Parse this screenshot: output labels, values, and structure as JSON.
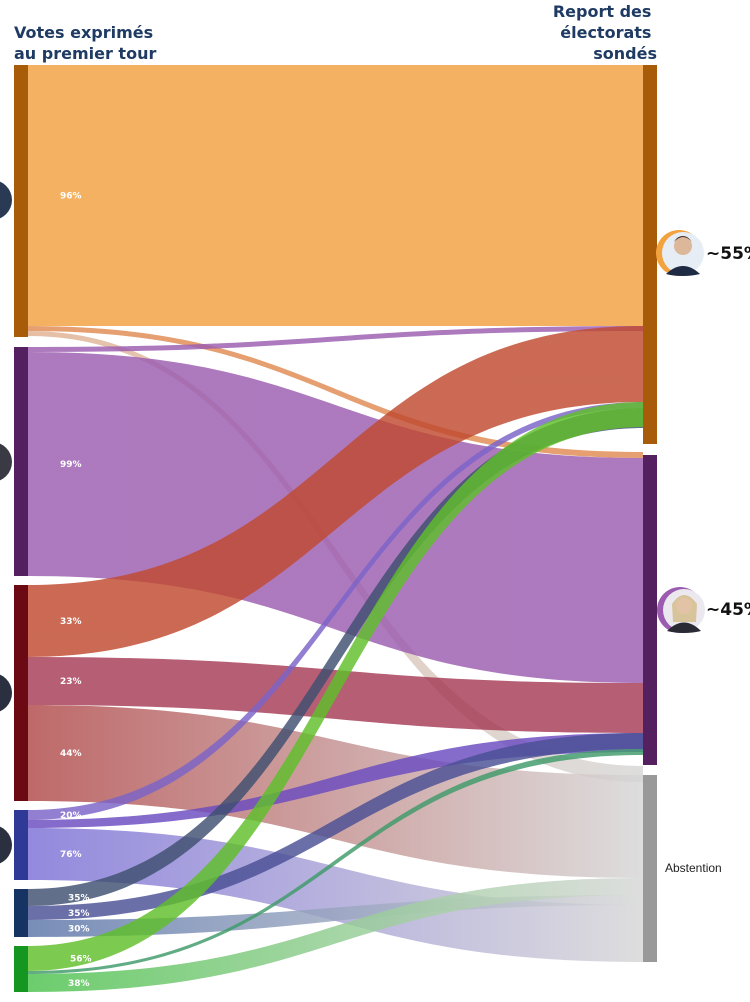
{
  "chart_data": {
    "type": "sankey",
    "title_left": [
      "Votes exprimés",
      "au premier tour"
    ],
    "title_right": [
      "Report des",
      "électorats",
      "sondés"
    ],
    "sources": [
      {
        "id": "s1",
        "color": "#a85b08"
      },
      {
        "id": "s2",
        "color": "#55205f"
      },
      {
        "id": "s3",
        "color": "#6b0a12"
      },
      {
        "id": "s4",
        "color": "#2f3996"
      },
      {
        "id": "s5",
        "color": "#163463"
      },
      {
        "id": "s6",
        "color": "#159620"
      }
    ],
    "targets": [
      {
        "id": "macron",
        "share_label": "~55%",
        "color": "#a85b08",
        "avatar_ring": "#f2a23f"
      },
      {
        "id": "le-pen",
        "share_label": "~45%",
        "color": "#55205f",
        "avatar_ring": "#9b5cb0"
      },
      {
        "id": "abstention",
        "label": "Abstention",
        "color": "#999999"
      }
    ],
    "flows": [
      {
        "source": "s1",
        "target": "macron",
        "label": "96%",
        "color": "#f2a040"
      },
      {
        "source": "s1",
        "target": "le-pen",
        "label": "",
        "color": "#e08a50"
      },
      {
        "source": "s1",
        "target": "abstention",
        "label": "",
        "color": "#e0b090"
      },
      {
        "source": "s2",
        "target": "macron",
        "label": "",
        "color": "#9b5cb0"
      },
      {
        "source": "s2",
        "target": "le-pen",
        "label": "99%",
        "color": "#9b5cb0"
      },
      {
        "source": "s3",
        "target": "macron",
        "label": "33%",
        "color": "#c0492f"
      },
      {
        "source": "s3",
        "target": "le-pen",
        "label": "23%",
        "color": "#a53a55"
      },
      {
        "source": "s3",
        "target": "abstention",
        "label": "44%",
        "color": "#b04848"
      },
      {
        "source": "s4",
        "target": "macron",
        "label": "20%",
        "color": "#7b63c8"
      },
      {
        "source": "s4",
        "target": "le-pen",
        "label": "",
        "color": "#6a4bc0"
      },
      {
        "source": "s4",
        "target": "abstention",
        "label": "76%",
        "color": "#7b6fd6"
      },
      {
        "source": "s5",
        "target": "macron",
        "label": "35%",
        "color": "#3f4f70"
      },
      {
        "source": "s5",
        "target": "le-pen",
        "label": "35%",
        "color": "#4a4f95"
      },
      {
        "source": "s5",
        "target": "abstention",
        "label": "30%",
        "color": "#5a74a8"
      },
      {
        "source": "s6",
        "target": "macron",
        "label": "56%",
        "color": "#5fbf2a"
      },
      {
        "source": "s6",
        "target": "le-pen",
        "label": "",
        "color": "#3f9a6a"
      },
      {
        "source": "s6",
        "target": "abstention",
        "label": "38%",
        "color": "#4cc24c"
      }
    ]
  }
}
